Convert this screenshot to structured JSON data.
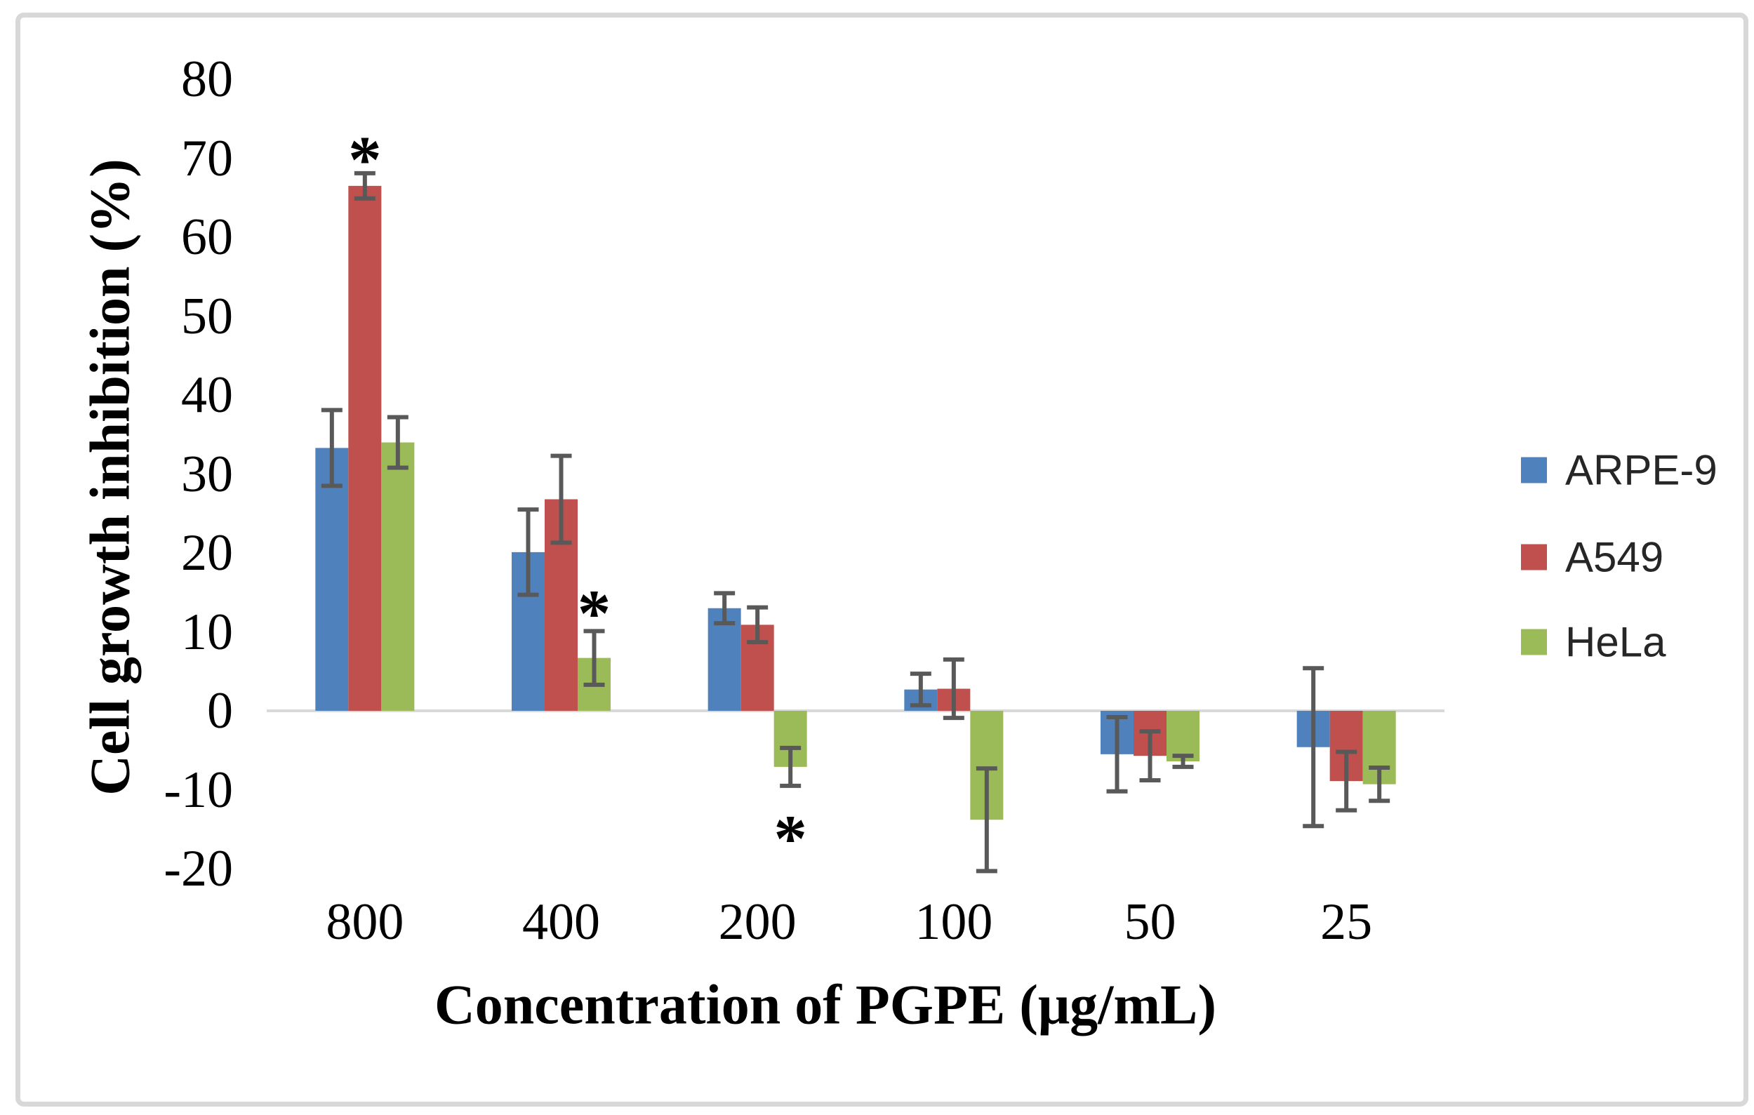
{
  "chart_data": {
    "type": "bar",
    "title": "",
    "xlabel": "Concentration of PGPE (μg/mL)",
    "ylabel": "Cell growth inhibition (%)",
    "categories": [
      "800",
      "400",
      "200",
      "100",
      "50",
      "25"
    ],
    "series": [
      {
        "name": "ARPE-9",
        "color": "#4f81bd",
        "values": [
          33.3,
          20.1,
          13.0,
          2.7,
          -5.5,
          -4.6
        ],
        "errors": [
          4.8,
          5.4,
          1.9,
          2.0,
          4.7,
          10.0
        ]
      },
      {
        "name": "A549",
        "color": "#c0504d",
        "values": [
          66.5,
          26.8,
          10.9,
          2.8,
          -5.7,
          -8.9
        ],
        "errors": [
          1.6,
          5.5,
          2.2,
          3.7,
          3.1,
          3.7
        ]
      },
      {
        "name": "HeLa",
        "color": "#9bbb59",
        "values": [
          34.0,
          6.7,
          -7.1,
          -13.8,
          -6.4,
          -9.3
        ],
        "errors": [
          3.2,
          3.4,
          2.4,
          6.5,
          0.7,
          2.1
        ]
      }
    ],
    "ylim": [
      -20,
      80
    ],
    "ytick_step": 10,
    "y_tick_labels": [
      "80",
      "70",
      "60",
      "50",
      "40",
      "30",
      "20",
      "10",
      "0",
      "-10",
      "-20"
    ],
    "grid": false,
    "legend_position": "right",
    "annotations": [
      {
        "text": "*",
        "category_index": 0,
        "series_index": 1,
        "value": 71,
        "placement": "above"
      },
      {
        "text": "*",
        "category_index": 1,
        "series_index": 2,
        "value": 13.5,
        "placement": "above"
      },
      {
        "text": "*",
        "category_index": 2,
        "series_index": 2,
        "value": -15,
        "placement": "below"
      }
    ],
    "error_bar_color": "#595959",
    "baseline_color": "#d9d9d9"
  }
}
